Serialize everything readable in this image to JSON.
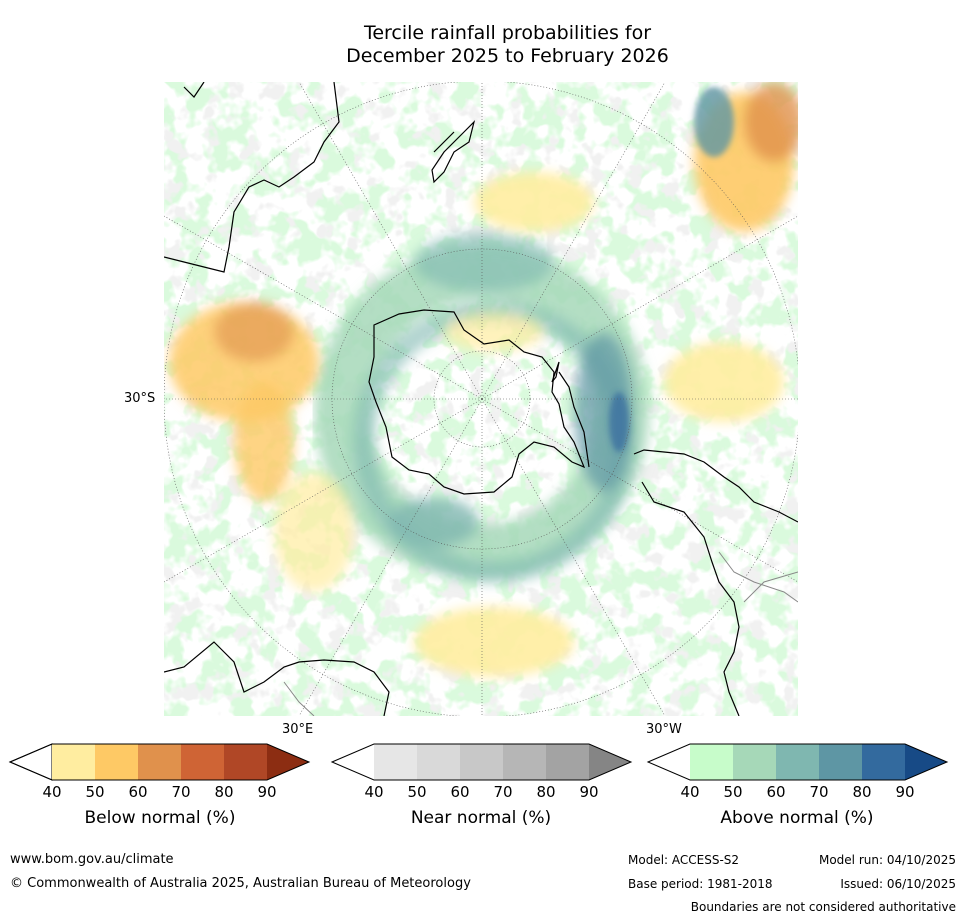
{
  "title": {
    "line1": "Tercile rainfall probabilities for",
    "line2": "December 2025 to February 2026"
  },
  "map": {
    "projection": "south-polar-stereographic",
    "lat_label": "30°S",
    "lon_label_east": "30°E",
    "lon_label_west": "30°W"
  },
  "legends": [
    {
      "title": "Below normal (%)",
      "ticks": [
        "40",
        "50",
        "60",
        "70",
        "80",
        "90"
      ],
      "colors": [
        "#ffeda0",
        "#fec965",
        "#e0914c",
        "#cf6435",
        "#b04726",
        "#8c2d12"
      ]
    },
    {
      "title": "Near normal (%)",
      "ticks": [
        "40",
        "50",
        "60",
        "70",
        "80",
        "90"
      ],
      "colors": [
        "#e6e6e6",
        "#d9d9d9",
        "#c8c8c8",
        "#b6b6b6",
        "#a3a3a3",
        "#858585"
      ]
    },
    {
      "title": "Above normal (%)",
      "ticks": [
        "40",
        "50",
        "60",
        "70",
        "80",
        "90"
      ],
      "colors": [
        "#c7fcca",
        "#a6d8b8",
        "#7fb7b0",
        "#5e96a4",
        "#336a9e",
        "#174a86"
      ]
    }
  ],
  "footer": {
    "website": "www.bom.gov.au/climate",
    "copyright": "© Commonwealth of Australia 2025, Australian Bureau of Meteorology",
    "model": "Model: ACCESS-S2",
    "base_period": "Base period: 1981-2018",
    "model_run": "Model run: 04/10/2025",
    "issued": "Issued: 06/10/2025",
    "disclaimer": "Boundaries are not considered authoritative"
  }
}
